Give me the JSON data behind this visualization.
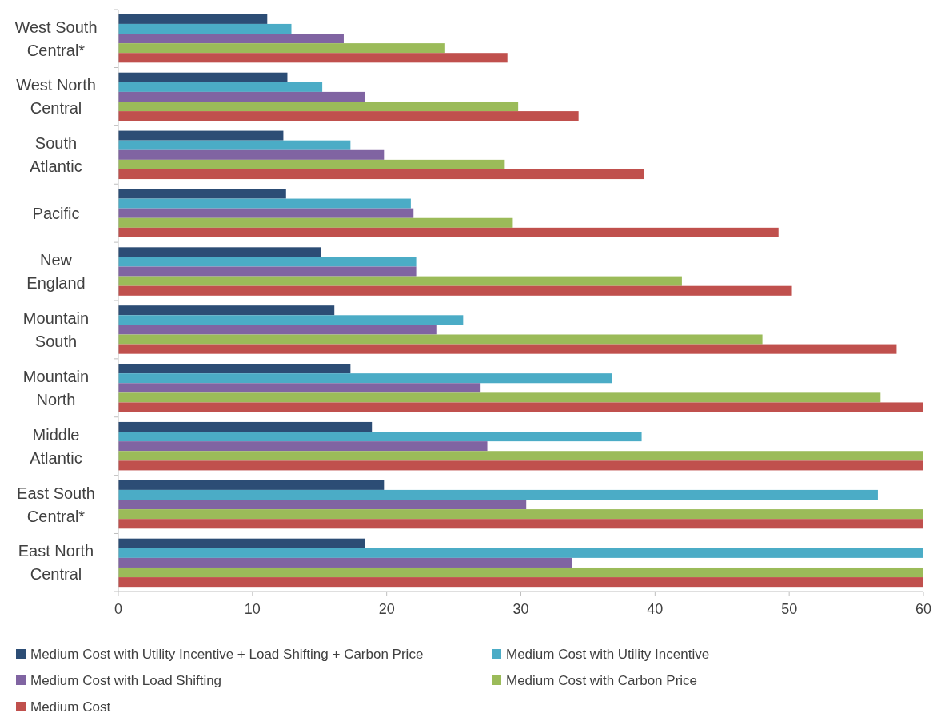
{
  "chart_data": {
    "type": "bar",
    "orientation": "horizontal",
    "categories": [
      "West South Central*",
      "West North Central",
      "South Atlantic",
      "Pacific",
      "New England",
      "Mountain South",
      "Mountain North",
      "Middle Atlantic",
      "East South Central*",
      "East North Central"
    ],
    "series": [
      {
        "name": "Medium Cost with Utility Incentive + Load Shifting + Carbon Price",
        "color": "#2c4d75",
        "values": [
          11.1,
          12.6,
          12.3,
          12.5,
          15.1,
          16.1,
          17.3,
          18.9,
          19.8,
          18.4
        ]
      },
      {
        "name": "Medium Cost with Utility Incentive",
        "color": "#4bacc6",
        "values": [
          12.9,
          15.2,
          17.3,
          21.8,
          22.2,
          25.7,
          36.8,
          39.0,
          56.6,
          60
        ]
      },
      {
        "name": "Medium Cost with Load Shifting",
        "color": "#8064a2",
        "values": [
          16.8,
          18.4,
          19.8,
          22.0,
          22.2,
          23.7,
          27.0,
          27.5,
          30.4,
          33.8
        ]
      },
      {
        "name": "Medium Cost with Carbon Price",
        "color": "#9bbb59",
        "values": [
          24.3,
          29.8,
          28.8,
          29.4,
          42.0,
          48.0,
          56.8,
          60,
          60,
          60
        ]
      },
      {
        "name": "Medium Cost",
        "color": "#c0504d",
        "values": [
          29.0,
          34.3,
          39.2,
          49.2,
          50.2,
          58.0,
          60,
          60,
          60,
          60
        ]
      }
    ],
    "xlim": [
      0,
      60
    ],
    "xticks": [
      0,
      10,
      20,
      30,
      40,
      50,
      60
    ],
    "grid": false,
    "legend": "bottom"
  }
}
